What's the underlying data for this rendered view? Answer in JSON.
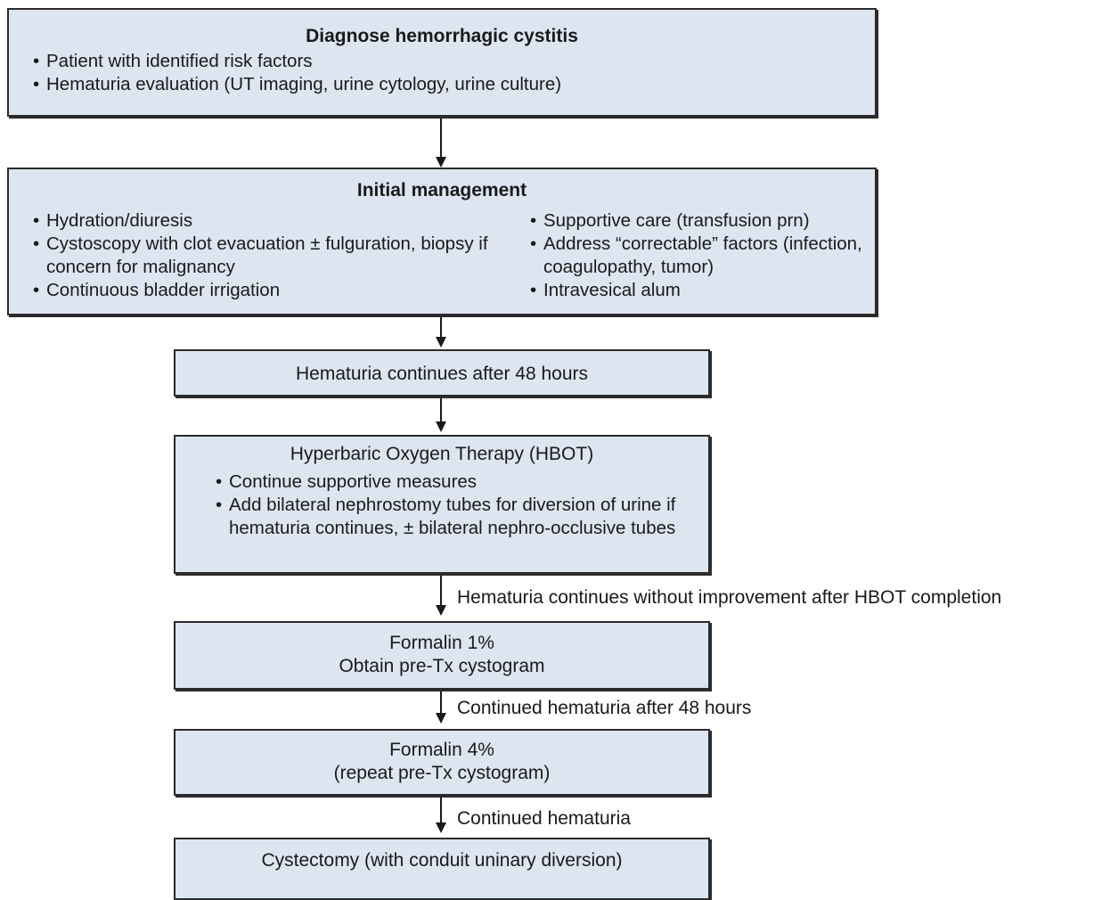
{
  "colors": {
    "box_fill": "#dde5f1",
    "border": "#2b2b2b",
    "text": "#1a1a1a"
  },
  "diagnose": {
    "title": "Diagnose hemorrhagic cystitis",
    "bullets": [
      "Patient with identified risk factors",
      "Hematuria evaluation (UT imaging, urine cytology, urine culture)"
    ]
  },
  "initial": {
    "title": "Initial management",
    "left_bullets": [
      "Hydration/diuresis",
      "Cystoscopy with clot evacuation ± fulguration, biopsy if concern for malignancy",
      "Continuous bladder irrigation"
    ],
    "right_bullets": [
      "Supportive care (transfusion prn)",
      "Address “correctable” factors (infection, coagulopathy, tumor)",
      "Intravesical alum"
    ]
  },
  "hematuria48": {
    "title": "Hematuria continues after 48 hours"
  },
  "hbot": {
    "title": "Hyperbaric Oxygen Therapy (HBOT)",
    "bullets": [
      "Continue supportive measures",
      "Add bilateral nephrostomy tubes for diversion of urine if hematuria continues, ± bilateral nephro-occlusive tubes"
    ]
  },
  "formalin1": {
    "line1": "Formalin 1%",
    "line2": "Obtain pre-Tx cystogram"
  },
  "formalin4": {
    "line1": "Formalin 4%",
    "line2": "(repeat pre-Tx cystogram)"
  },
  "cystectomy": {
    "title": "Cystectomy (with conduit uninary diversion)"
  },
  "edge_labels": {
    "after_hbot": "Hematuria continues without improvement after HBOT completion",
    "after_formalin1": "Continued hematuria after 48 hours",
    "after_formalin4": "Continued hematuria"
  }
}
